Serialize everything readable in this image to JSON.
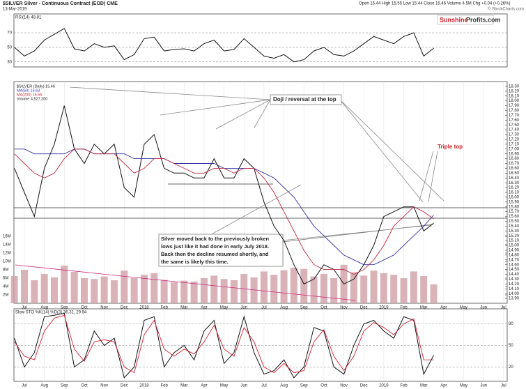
{
  "header": {
    "title": "$SILVER Silver - Continuous Contract (EOD) CME",
    "date": "13-Mar-2019",
    "quote": "Open 15.44 High 15.55 Low 15.44 Close 15.46 Volume 4.5M Chg +0.04 (+0.26%)",
    "credit": "© StockCharts.com",
    "logo": {
      "part1": "Sunshine",
      "part2": "Profits.com"
    }
  },
  "chart_data": [
    {
      "type": "line",
      "title": "RSI(14) 48.81",
      "ylim": [
        23,
        96
      ],
      "yticks": [
        70,
        50,
        30
      ],
      "grid": true,
      "series": [
        {
          "name": null,
          "color": "#111",
          "values": [
            50,
            38,
            45,
            60,
            68,
            76,
            48,
            45,
            55,
            50,
            52,
            33,
            40,
            62,
            64,
            45,
            47,
            48,
            45,
            55,
            60,
            45,
            47,
            62,
            50,
            38,
            35,
            40,
            30,
            33,
            45,
            50,
            40,
            38,
            45,
            55,
            65,
            60,
            55,
            65,
            70,
            38,
            48.81
          ]
        }
      ]
    },
    {
      "type": "line",
      "ylim": [
        13.8,
        18.4
      ],
      "grid": false,
      "categories": [
        null,
        "Jul",
        null,
        "Aug",
        null,
        "Sep",
        null,
        "Oct",
        null,
        "Nov",
        null,
        "Dec",
        null,
        "2018",
        null,
        "Feb",
        null,
        "Mar",
        null,
        "Apr",
        null,
        "May",
        null,
        "Jun",
        null,
        "Jul",
        null,
        "Aug",
        null,
        "Sep",
        null,
        "Oct",
        null,
        "Nov",
        null,
        "Dec",
        null,
        "2019",
        null,
        "Feb",
        null,
        "Mar",
        null,
        "Apr",
        null,
        "May",
        null,
        "Jun",
        null,
        "Jul"
      ],
      "yticks": [
        {
          "value": 18.3,
          "label": "18.30"
        },
        {
          "value": 18.2,
          "label": "18.20"
        },
        {
          "value": 18.1,
          "label": "18.10"
        },
        {
          "value": 18.0,
          "label": "18.00"
        },
        {
          "value": 17.9,
          "label": "17.90"
        },
        {
          "value": 17.8,
          "label": "17.80"
        },
        {
          "value": 17.7,
          "label": "17.70"
        },
        {
          "value": 17.6,
          "label": "17.60"
        },
        {
          "value": 17.5,
          "label": "17.50"
        },
        {
          "value": 17.4,
          "label": "17.40"
        },
        {
          "value": 17.3,
          "label": "17.30"
        },
        {
          "value": 17.2,
          "label": "17.20"
        },
        {
          "value": 17.1,
          "label": "17.10"
        },
        {
          "value": 17.0,
          "label": "17.00"
        },
        {
          "value": 16.9,
          "label": "16.90"
        },
        {
          "value": 16.8,
          "label": "16.80"
        },
        {
          "value": 16.7,
          "label": "16.70"
        },
        {
          "value": 16.6,
          "label": "16.60"
        },
        {
          "value": 16.5,
          "label": "16.50"
        },
        {
          "value": 16.4,
          "label": "16.40"
        },
        {
          "value": 16.3,
          "label": "16.30"
        },
        {
          "value": 16.2,
          "label": "16.20"
        },
        {
          "value": 16.1,
          "label": "16.10"
        },
        {
          "value": 16.0,
          "label": "16.00"
        },
        {
          "value": 15.9,
          "label": "15.90"
        },
        {
          "value": 15.8,
          "label": "15.80"
        },
        {
          "value": 15.7,
          "label": "15.70"
        },
        {
          "value": 15.6,
          "label": "15.60"
        },
        {
          "value": 15.5,
          "label": "15.50"
        },
        {
          "value": 15.4,
          "label": "15.40"
        },
        {
          "value": 15.3,
          "label": "15.30"
        },
        {
          "value": 15.2,
          "label": "15.20"
        },
        {
          "value": 15.1,
          "label": "15.10"
        },
        {
          "value": 15.0,
          "label": "15.00"
        },
        {
          "value": 14.9,
          "label": "14.90"
        },
        {
          "value": 14.8,
          "label": "14.80"
        },
        {
          "value": 14.7,
          "label": "14.70"
        },
        {
          "value": 14.6,
          "label": "14.60"
        },
        {
          "value": 14.5,
          "label": "14.50"
        },
        {
          "value": 14.4,
          "label": "14.40"
        },
        {
          "value": 14.3,
          "label": "14.30"
        },
        {
          "value": 14.2,
          "label": "14.20"
        },
        {
          "value": 14.1,
          "label": "14.10"
        },
        {
          "value": 14.0,
          "label": "14.00"
        },
        {
          "value": 13.9,
          "label": "13.90"
        }
      ],
      "series": [
        {
          "name": "$SILVER (Daily) 15.46",
          "color": "#111",
          "values": [
            16.6,
            16.1,
            15.6,
            16.6,
            17.1,
            17.9,
            17.0,
            16.7,
            17.1,
            16.9,
            17.1,
            16.2,
            16.0,
            17.1,
            17.3,
            16.6,
            16.5,
            16.5,
            16.4,
            16.4,
            16.8,
            16.4,
            16.4,
            16.8,
            16.6,
            15.9,
            15.4,
            15.1,
            14.6,
            14.2,
            14.3,
            14.6,
            14.5,
            14.2,
            14.3,
            14.6,
            15.0,
            15.6,
            15.7,
            15.8,
            15.8,
            15.3,
            15.46,
            null,
            null,
            null,
            null,
            null,
            null,
            null
          ]
        },
        {
          "name": "MA(50) 15.63",
          "color": "#3030a0",
          "values": [
            17.0,
            17.0,
            16.9,
            16.9,
            16.9,
            16.9,
            17.0,
            17.0,
            16.9,
            16.9,
            16.9,
            16.9,
            16.8,
            16.8,
            16.8,
            16.8,
            16.7,
            16.7,
            16.7,
            16.7,
            16.7,
            16.6,
            16.6,
            16.6,
            16.6,
            16.5,
            16.4,
            16.2,
            16.0,
            15.7,
            15.4,
            15.2,
            15.0,
            14.8,
            14.7,
            14.6,
            14.6,
            14.7,
            14.8,
            15.0,
            15.2,
            15.4,
            15.63,
            null,
            null,
            null,
            null,
            null,
            null,
            null
          ]
        },
        {
          "name": "MA(200) 15.55",
          "color": "#c0283c",
          "values": [
            16.9,
            16.7,
            16.5,
            16.4,
            16.5,
            16.8,
            17.0,
            17.0,
            16.9,
            16.9,
            16.9,
            16.7,
            16.5,
            16.6,
            16.8,
            16.8,
            16.7,
            16.6,
            16.5,
            16.5,
            16.6,
            16.6,
            16.5,
            16.6,
            16.6,
            16.4,
            16.1,
            15.7,
            15.3,
            14.9,
            14.6,
            14.5,
            14.5,
            14.5,
            14.4,
            14.5,
            14.7,
            15.0,
            15.4,
            15.6,
            15.8,
            15.7,
            15.55,
            null,
            null,
            null,
            null,
            null,
            null,
            null
          ]
        }
      ],
      "annotations": {
        "doji": "Doji / reversal at the top",
        "triple": "Triple top",
        "note": [
          "Silver moved back to the previously broken",
          "lows just like it had done in early July 2018.",
          "Back then the decline resumed shortly, and",
          "the same is likely this time."
        ]
      }
    },
    {
      "type": "bar",
      "name": "Volume 4,527,200",
      "color": "#cfa0a6",
      "ylim": [
        0,
        18000000
      ],
      "yticks": [
        {
          "value": 2000000,
          "label": "2M"
        },
        {
          "value": 4000000,
          "label": "4M"
        },
        {
          "value": 6000000,
          "label": "6M"
        },
        {
          "value": 8000000,
          "label": "8M"
        },
        {
          "value": 10000000,
          "label": "10M"
        },
        {
          "value": 12000000,
          "label": "12M"
        },
        {
          "value": 14000000,
          "label": "14M"
        },
        {
          "value": 16000000,
          "label": "16M"
        }
      ],
      "values": [
        6500000,
        8000000,
        5500000,
        7000000,
        6200000,
        9000000,
        7500000,
        6000000,
        5800000,
        6400000,
        5500000,
        7800000,
        6000000,
        6800000,
        7200000,
        5600000,
        5000000,
        5400000,
        5200000,
        6000000,
        6600000,
        5800000,
        5500000,
        7000000,
        6200000,
        7600000,
        6800000,
        7900000,
        8500000,
        8200000,
        6400000,
        7000000,
        6000000,
        9200000,
        7400000,
        6600000,
        7800000,
        7200000,
        6800000,
        6000000,
        7600000,
        6500000,
        4527200
      ]
    },
    {
      "type": "line",
      "title": "Slow STO %K(14) %D(3) 36.31, 29.94",
      "ylim": [
        0,
        101
      ],
      "yticks": [
        80,
        50,
        20
      ],
      "grid": true,
      "categories": [
        null,
        "Jul",
        null,
        "Aug",
        null,
        "Sep",
        null,
        "Oct",
        null,
        "Nov",
        null,
        "Dec",
        null,
        "2018",
        null,
        "Feb",
        null,
        "Mar",
        null,
        "Apr",
        null,
        "May",
        null,
        "Jun",
        null,
        "Jul",
        null,
        "Aug",
        null,
        "Sep",
        null,
        "Oct",
        null,
        "Nov",
        null,
        "Dec",
        null,
        "2019",
        null,
        "Feb",
        null,
        "Mar",
        null,
        "Apr",
        null,
        "May",
        null,
        "Jun",
        null,
        "Jul"
      ],
      "series": [
        {
          "name": null,
          "color": "#111",
          "values": [
            60,
            20,
            40,
            90,
            92,
            95,
            20,
            30,
            70,
            50,
            60,
            5,
            20,
            85,
            90,
            20,
            40,
            50,
            30,
            70,
            85,
            25,
            40,
            90,
            40,
            10,
            15,
            30,
            5,
            20,
            75,
            70,
            20,
            10,
            50,
            80,
            85,
            70,
            60,
            90,
            85,
            10,
            36.31,
            null,
            null,
            null,
            null,
            null,
            null,
            null
          ]
        },
        {
          "name": null,
          "color": "#d02030",
          "values": [
            55,
            35,
            30,
            70,
            88,
            92,
            45,
            28,
            55,
            58,
            55,
            20,
            12,
            65,
            85,
            45,
            35,
            45,
            38,
            55,
            78,
            45,
            35,
            75,
            55,
            20,
            12,
            25,
            12,
            15,
            55,
            72,
            35,
            15,
            35,
            70,
            82,
            75,
            65,
            80,
            87,
            30,
            29.94,
            null,
            null,
            null,
            null,
            null,
            null,
            null
          ]
        }
      ]
    }
  ]
}
